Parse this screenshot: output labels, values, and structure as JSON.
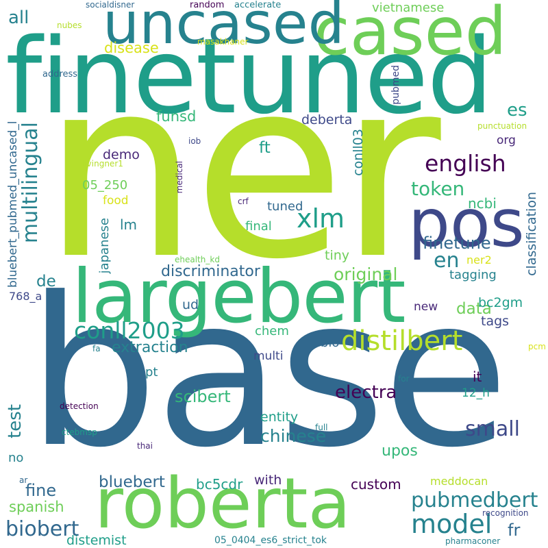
{
  "colors": {
    "background": "#ffffff",
    "lime": "#b5de2b",
    "green": "#6ece58",
    "teal": "#1f9e89",
    "teal_dark": "#26828e",
    "blue": "#31688e",
    "indigo": "#3e4989",
    "purple": "#482878",
    "violet": "#440154",
    "yellow": "#d8e219",
    "sea": "#35b779"
  },
  "words": {
    "ner": "ner",
    "base": "base",
    "finetuned": "finetuned",
    "cased": "cased",
    "uncased": "uncased",
    "largebert": "largebert",
    "roberta": "roberta",
    "pos": "pos",
    "distilbert": "distilbert",
    "conll2003": "conll2003",
    "multilingual": "multilingual",
    "xlm": "xlm",
    "english": "english",
    "model": "model",
    "pubmedbert": "pubmedbert",
    "biobert": "biobert",
    "small": "small",
    "chinese": "chinese",
    "en": "en",
    "all": "all",
    "test": "test",
    "scibert": "scibert",
    "electra": "electra",
    "token": "token",
    "es": "es",
    "original": "original",
    "finetune": "finetune",
    "discriminator": "discriminator",
    "extraction": "extraction",
    "data": "data",
    "fr": "fr",
    "fine": "fine",
    "spanish": "spanish",
    "distemist": "distemist",
    "bluebert": "bluebert",
    "bc5cdr": "bc5cdr",
    "with": "with",
    "custom": "custom",
    "upos": "upos",
    "funsd": "funsd",
    "disease": "disease",
    "deberta": "deberta",
    "vietnamese": "vietnamese",
    "ft": "ft",
    "demo": "demo",
    "w_05_250": "05_250",
    "food": "food",
    "lm": "lm",
    "tuned": "tuned",
    "final": "final",
    "ncbi": "ncbi",
    "org": "org",
    "tagging": "tagging",
    "tags": "tags",
    "bc2gm": "bc2gm",
    "new": "new",
    "ner2": "ner2",
    "tiny": "tiny",
    "de": "de",
    "w_768_a": "768_a",
    "ud": "ud",
    "chem": "chem",
    "bio": "bio",
    "multi": "multi",
    "pt": "pt",
    "it": "it",
    "w_12_h": "12_h",
    "entity": "entity",
    "no": "no",
    "meddocan": "meddocan",
    "w_05_0404": "05_0404_es6_strict_tok",
    "recognition": "recognition",
    "pharmaconer": "pharmaconer",
    "detection": "detection",
    "ctebmsp": "ctebmsp",
    "thai": "thai",
    "full": "full",
    "for": "for",
    "fa": "fa",
    "pcm": "pcm",
    "ar": "ar",
    "crf": "crf",
    "iob": "iob",
    "nubes": "nubes",
    "address": "address",
    "socialdisner": "socialdisner",
    "random": "random",
    "accelerate": "accelerate",
    "masakhaner": "masakhaner",
    "punctuation": "punctuation",
    "livingner1": "livingner1",
    "ehealth_kd": "ehealth_kd",
    "bluebert_pubmed_uncased_l": "bluebert_pubmed_uncased_l",
    "medical": "medical",
    "pubmed": "pubmed",
    "conll03": "conll03",
    "japanese": "japanese",
    "classification": "classification"
  }
}
